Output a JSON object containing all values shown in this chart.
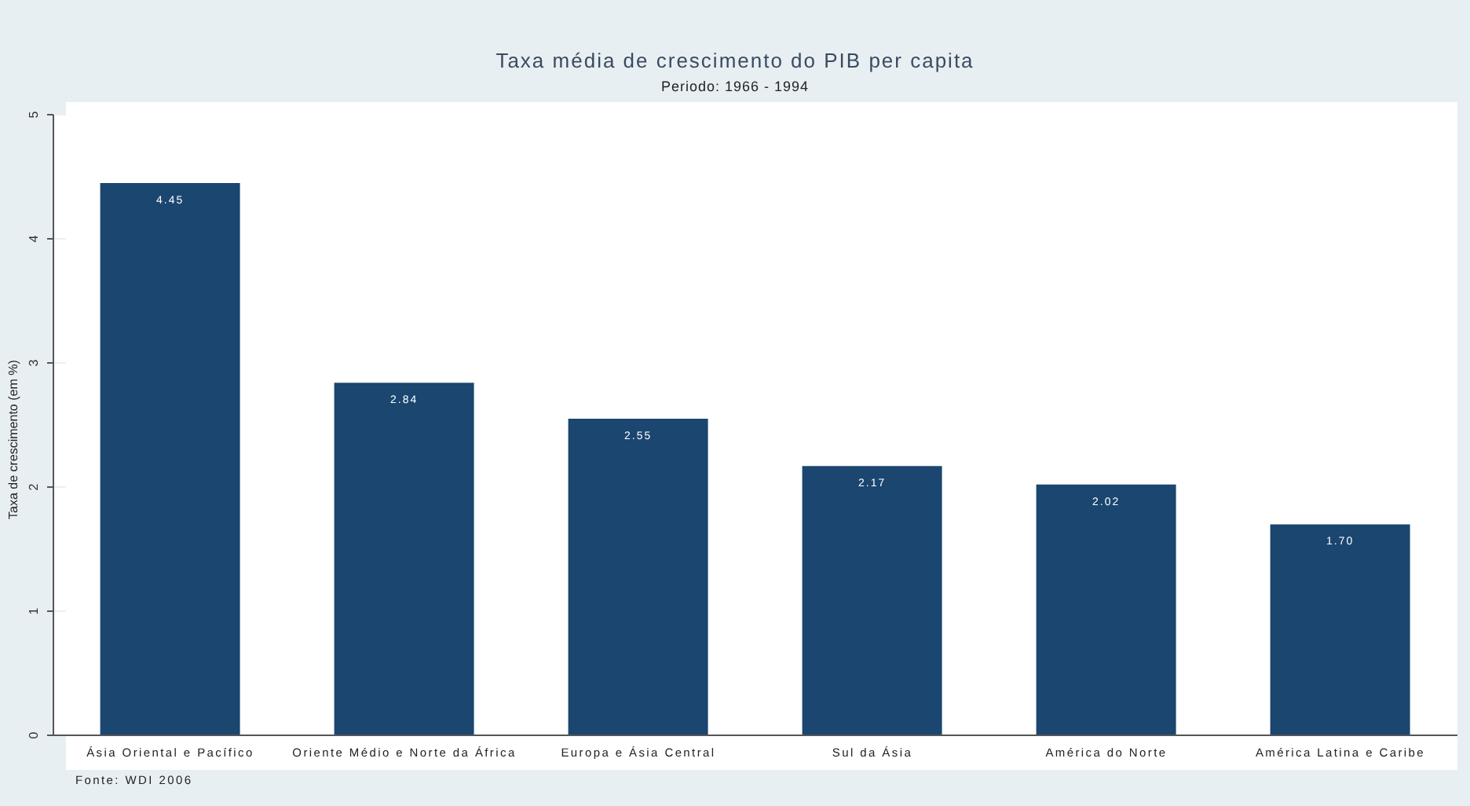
{
  "chart_data": {
    "type": "bar",
    "title": "Taxa média de crescimento do PIB per capita",
    "subtitle": "Periodo: 1966 - 1994",
    "ylabel": "Taxa de crescimento (em %)",
    "categories": [
      "Ásia Oriental e Pacífico",
      "Oriente Médio e Norte da África",
      "Europa e Ásia Central",
      "Sul da Ásia",
      "América do Norte",
      "América Latina e Caribe"
    ],
    "values": [
      4.45,
      2.84,
      2.55,
      2.17,
      2.02,
      1.7
    ],
    "value_labels": [
      "4.45",
      "2.84",
      "2.55",
      "2.17",
      "2.02",
      "1.70"
    ],
    "color": "#1a4670",
    "ylim": [
      0,
      5
    ],
    "yticks": [
      0,
      1,
      2,
      3,
      4,
      5
    ],
    "grid": "y",
    "annotations": [
      "Fonte: WDI 2006"
    ]
  }
}
